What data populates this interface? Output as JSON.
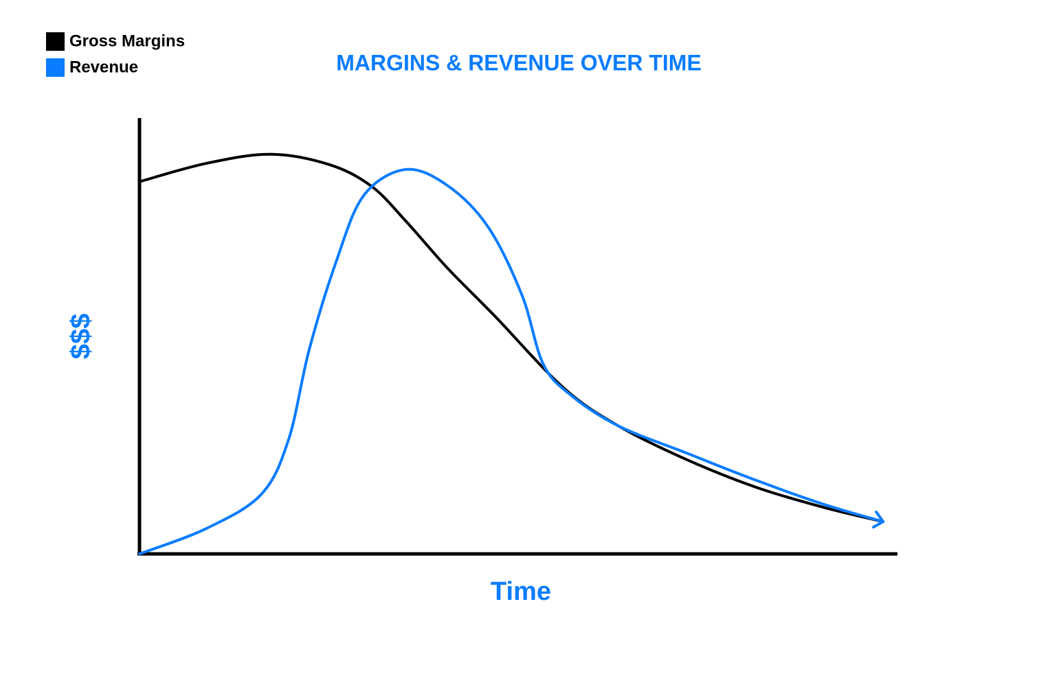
{
  "chart_data": {
    "type": "line",
    "title": "MARGINS & REVENUE OVER TIME",
    "x_label": "Time",
    "y_label": "$$$",
    "xlim": [
      0,
      100
    ],
    "ylim": [
      0,
      100
    ],
    "legend": "top-left",
    "series": [
      {
        "name": "Gross Margins",
        "color": "#000000",
        "x": [
          0,
          8.8,
          17.4,
          25.1,
          30.6,
          35.1,
          40.6,
          46.9,
          56.0,
          63.2,
          72.3,
          81.4,
          90.5,
          98.2
        ],
        "values": [
          85.4,
          89.6,
          91.7,
          89.3,
          84.4,
          76.5,
          65.7,
          54.6,
          38.1,
          29.4,
          21.6,
          15.3,
          10.6,
          7.4
        ]
      },
      {
        "name": "Revenue",
        "color": "#0a7cff",
        "x": [
          0,
          8.8,
          16.1,
          19.7,
          22.4,
          26.0,
          29.6,
          35.1,
          40.6,
          46.0,
          50.5,
          53.3,
          56.9,
          63.2,
          72.3,
          81.4,
          90.5,
          98.2
        ],
        "values": [
          0,
          5.8,
          13.7,
          26.3,
          46.8,
          67.2,
          82.2,
          88.2,
          84.6,
          75.1,
          59.4,
          43.6,
          36.5,
          29.4,
          23.1,
          16.9,
          11.3,
          7.4
        ]
      }
    ]
  }
}
